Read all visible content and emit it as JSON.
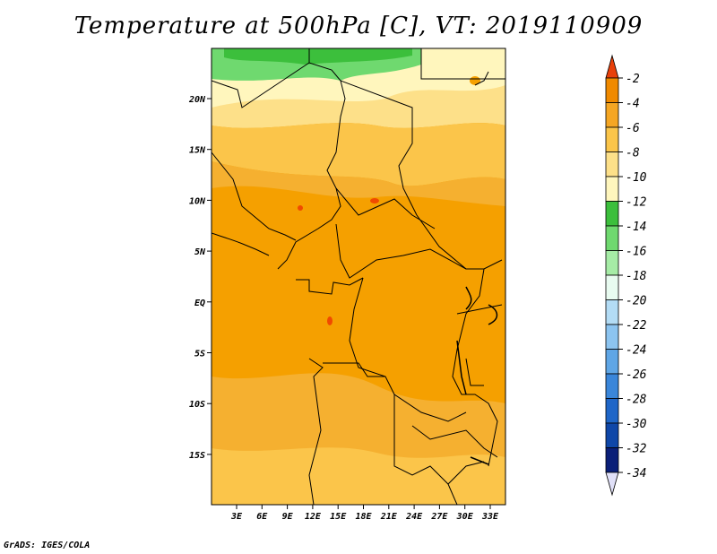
{
  "title": "Temperature at 500hPa [C], VT: 2019110909",
  "footer": "GrADS: IGES/COLA",
  "map": {
    "variable": "Temperature at 500hPa",
    "units": "C",
    "valid_time": "2019110909",
    "lat_ticks": [
      "20N",
      "15N",
      "10N",
      "5N",
      "EQ",
      "5S",
      "10S",
      "15S"
    ],
    "lon_ticks": [
      "3E",
      "6E",
      "9E",
      "12E",
      "15E",
      "18E",
      "21E",
      "24E",
      "27E",
      "30E",
      "33E"
    ]
  },
  "colorbar": {
    "levels": [
      "-2",
      "-4",
      "-6",
      "-8",
      "-10",
      "-12",
      "-14",
      "-16",
      "-18",
      "-20",
      "-22",
      "-24",
      "-26",
      "-28",
      "-30",
      "-32",
      "-34"
    ],
    "colors": [
      "#f04a00",
      "#f08a00",
      "#f5a623",
      "#fbc54a",
      "#fde089",
      "#fff6bd",
      "#3cbf3c",
      "#6fd96f",
      "#a6eca6",
      "#e8fbf0",
      "#b3dcf5",
      "#8cc4f0",
      "#5fa6e6",
      "#3a86da",
      "#1f66c8",
      "#0f47a8",
      "#0a1f78"
    ],
    "top_triangle_color": "#e8400a",
    "bottom_triangle_color": "#e0e0f8"
  }
}
